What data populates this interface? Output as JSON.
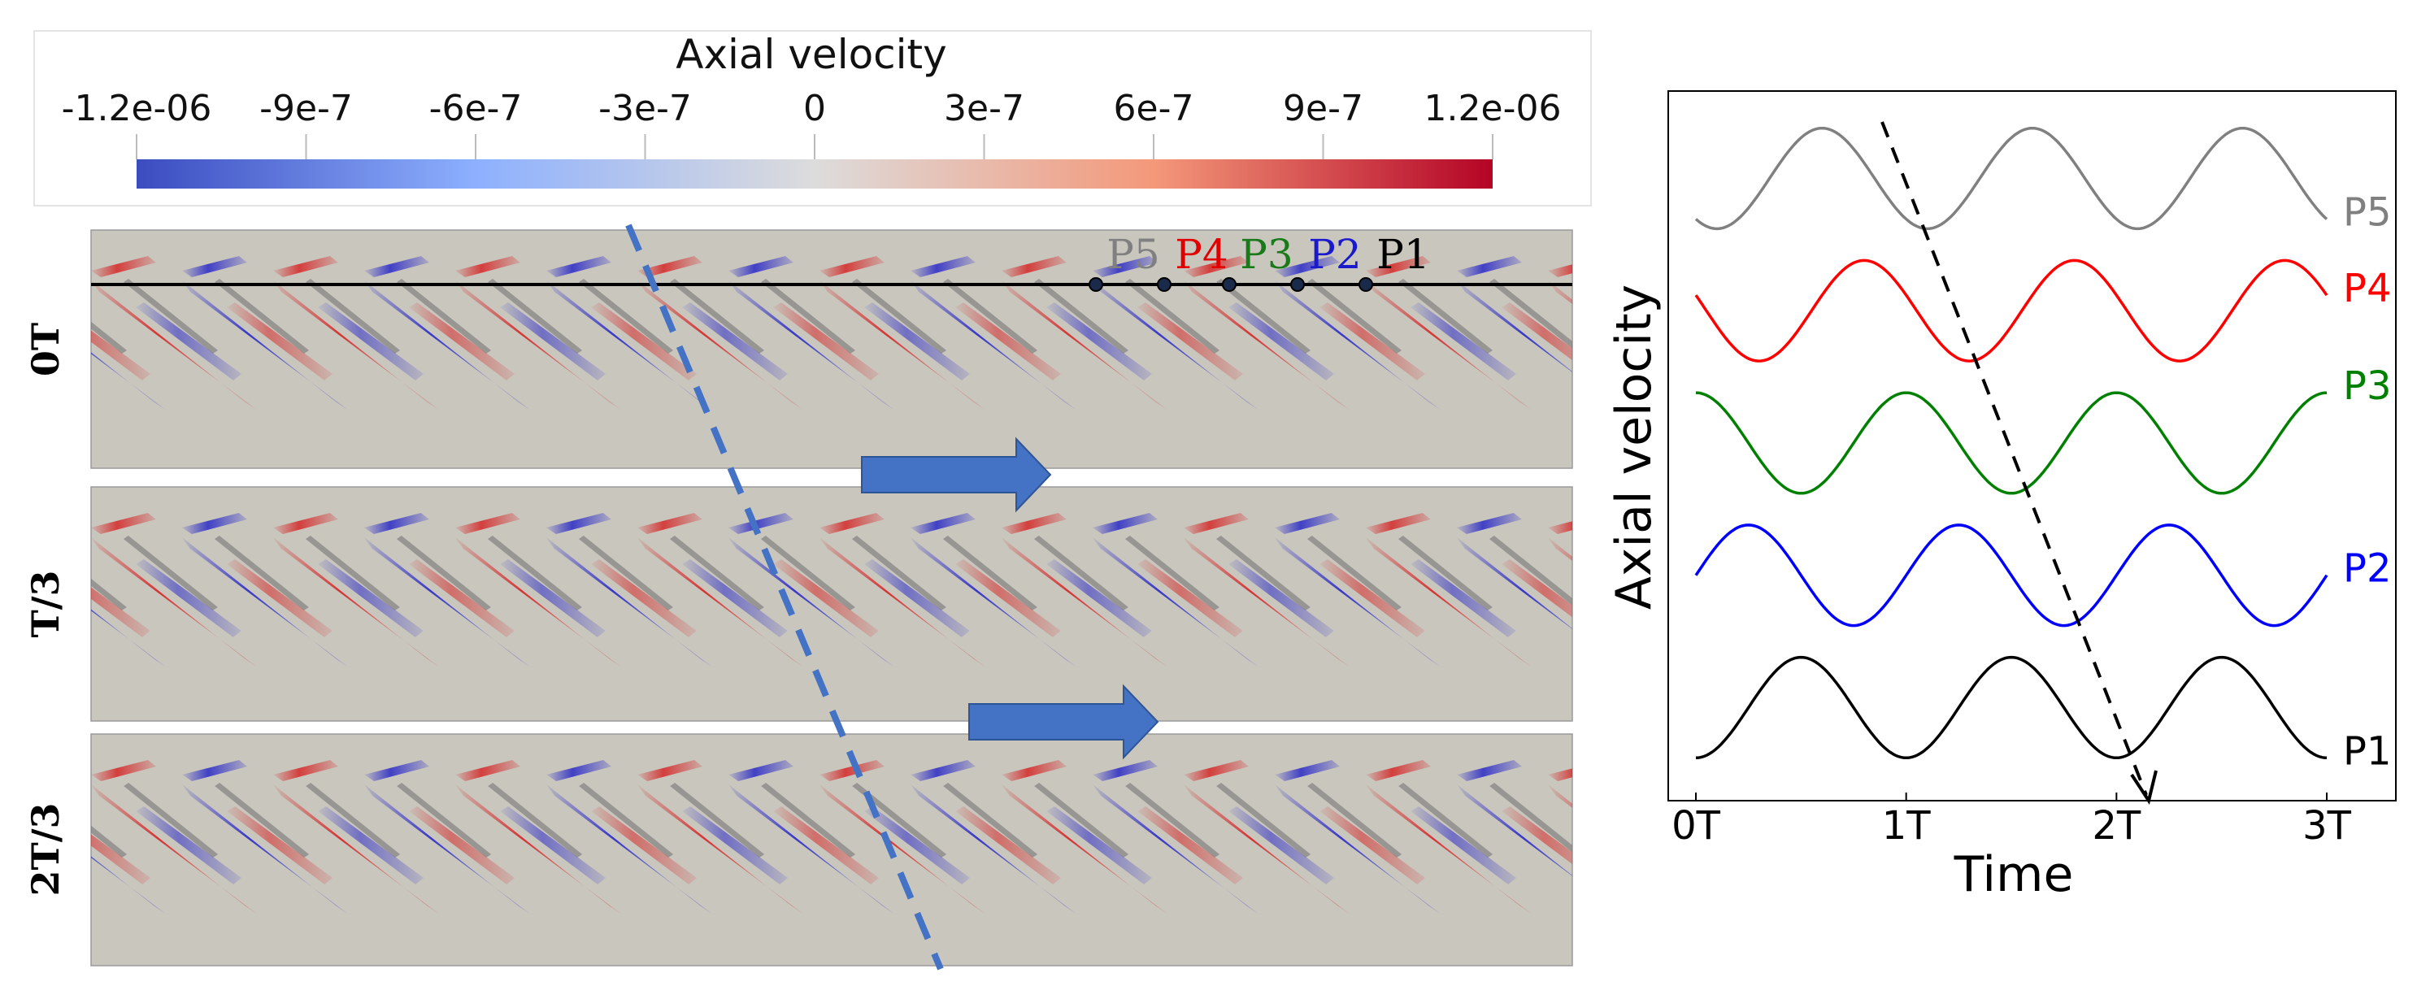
{
  "colorbar": {
    "title": "Axial velocity",
    "ticks": [
      "-1.2e-06",
      "-9e-7",
      "-6e-7",
      "-3e-7",
      "0",
      "3e-7",
      "6e-7",
      "9e-7",
      "1.2e-06"
    ],
    "range": [
      -1.2e-06,
      1.2e-06
    ],
    "colors": [
      "#3b4cc0",
      "#dddcdc",
      "#b40426"
    ]
  },
  "contour_panels": [
    {
      "label": "0T",
      "phase": 0.0
    },
    {
      "label": "T/3",
      "phase": 0.333
    },
    {
      "label": "2T/3",
      "phase": 0.667
    }
  ],
  "probe_points": [
    {
      "label": "P5",
      "color": "#808080"
    },
    {
      "label": "P4",
      "color": "#e00000"
    },
    {
      "label": "P3",
      "color": "#1a7a1a"
    },
    {
      "label": "P2",
      "color": "#1a1acc"
    },
    {
      "label": "P1",
      "color": "#000000"
    }
  ],
  "chart_data": {
    "type": "line",
    "xlabel": "Time",
    "ylabel": "Axial velocity",
    "xticks": [
      "0T",
      "1T",
      "2T",
      "3T"
    ],
    "xlim": [
      0,
      3
    ],
    "period": 1,
    "series": [
      {
        "name": "P5",
        "color": "#808080",
        "offset": 4.0,
        "amplitude": 0.38,
        "peaks_at": [
          0.6,
          1.6,
          2.6
        ]
      },
      {
        "name": "P4",
        "color": "#ff0000",
        "offset": 3.0,
        "amplitude": 0.38,
        "peaks_at": [
          0.8,
          1.8,
          2.8
        ]
      },
      {
        "name": "P3",
        "color": "#008000",
        "offset": 2.0,
        "amplitude": 0.38,
        "peaks_at": [
          1.0,
          2.0
        ]
      },
      {
        "name": "P2",
        "color": "#0000ff",
        "offset": 1.0,
        "amplitude": 0.38,
        "peaks_at": [
          0.25,
          1.25,
          2.25
        ]
      },
      {
        "name": "P1",
        "color": "#000000",
        "offset": 0.0,
        "amplitude": 0.38,
        "peaks_at": [
          0.5,
          1.5,
          2.5
        ]
      }
    ]
  },
  "colors": {
    "panel_background": "#c9c6be",
    "arrow": "#4472c4",
    "dashed_line": "#4472c4"
  }
}
